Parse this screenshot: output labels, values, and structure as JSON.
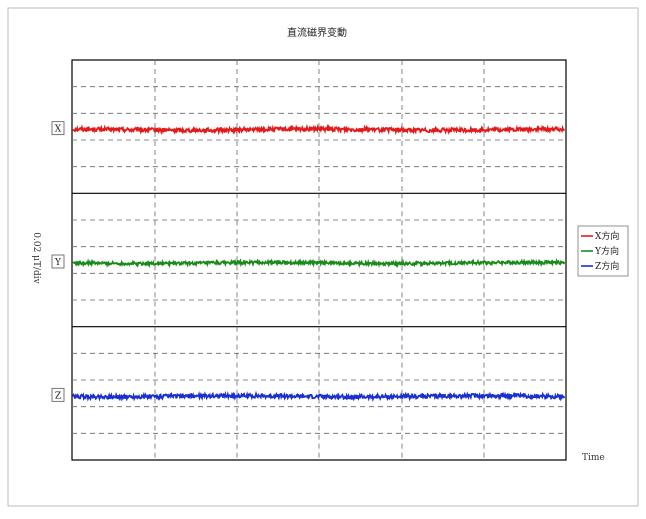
{
  "title": "直流磁界变動",
  "ylabel": "0.02 μT/div",
  "xlabel": "Time",
  "colors": {
    "frame": "#000000",
    "grid": "#666666",
    "x_series": "#e31a1a",
    "y_series": "#1a8a1a",
    "z_series": "#1a2fd0"
  },
  "chart_data": {
    "type": "line",
    "title": "直流磁界变動",
    "xlabel": "Time",
    "ylabel": "0.02 μT/div",
    "grid": true,
    "legend_placement": "right",
    "panels": [
      {
        "label": "X",
        "series": "X方向",
        "level": 0.0,
        "noise": 0.15
      },
      {
        "label": "Y",
        "series": "Y方向",
        "level": 0.0,
        "noise": 0.12
      },
      {
        "label": "Z",
        "series": "Z方向",
        "level": 0.0,
        "noise": 0.15
      }
    ],
    "series": [
      {
        "name": "X方向",
        "color": "#e31a1a"
      },
      {
        "name": "Y方向",
        "color": "#1a8a1a"
      },
      {
        "name": "Z方向",
        "color": "#1a2fd0"
      }
    ]
  }
}
